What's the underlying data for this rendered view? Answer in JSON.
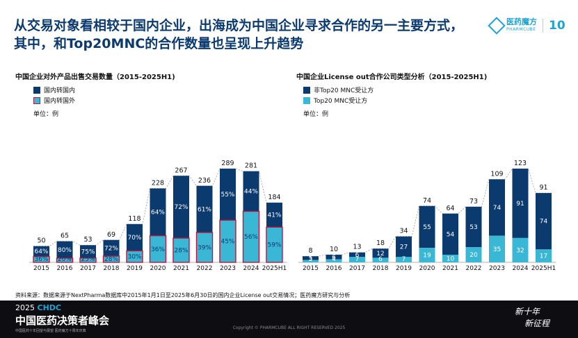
{
  "slide": {
    "title": "从交易对象看相较于国内企业，出海成为中国企业寻求合作的另一主要方式，其中，和Top20MNC的合作数量也呈现上升趋势",
    "logo": {
      "name": "医药魔方",
      "sub": "PHARMCUBE",
      "anniversary": "10"
    },
    "source": "资料来源：数据来源于NextPharma数据库中2015年1月1日至2025年6月30日的国内企业License out交易情况；医药魔方研究与分析",
    "footer": {
      "year": "2025",
      "brand": "CHDC",
      "conference": "中国医药决策者峰会",
      "subtitle": "中国医药十年回望与展望 医药魔方十周年庆典",
      "copyright": "Copyright © PHARMCUBE ALL RIGHT RESERVED 2025",
      "slogan_line1": "新十年",
      "slogan_line2": "新征程"
    },
    "colors": {
      "dark": "#0b3a6e",
      "light": "#3bb7d6",
      "highlight": "#c0143c",
      "text": "#111111"
    }
  },
  "chart_data": [
    {
      "type": "bar",
      "stacked": true,
      "title": "中国企业对外产品出售交易数量（2015-2025H1)",
      "unit_label": "单位：例",
      "categories": [
        "2015",
        "2016",
        "2017",
        "2018",
        "2019",
        "2020",
        "2021",
        "2022",
        "2023",
        "2024",
        "2025H1"
      ],
      "totals": [
        50,
        65,
        53,
        69,
        118,
        228,
        267,
        236,
        289,
        281,
        184
      ],
      "series": [
        {
          "name": "国内转国内",
          "percent_labels": [
            "64%",
            "80%",
            "75%",
            "72%",
            "70%",
            "64%",
            "72%",
            "61%",
            "55%",
            "44%",
            "41%"
          ]
        },
        {
          "name": "国内转国外",
          "percent_labels": [
            "36%",
            "20%",
            "25%",
            "28%",
            "30%",
            "36%",
            "28%",
            "39%",
            "45%",
            "56%",
            "59%"
          ]
        }
      ],
      "trend_line": "dotted line over totals"
    },
    {
      "type": "bar",
      "stacked": true,
      "title": "中国企业License out合作公司类型分析（2015-2025H1)",
      "categories": [
        "2015",
        "2016",
        "2017",
        "2018",
        "2019",
        "2020",
        "2021",
        "2022",
        "2023",
        "2024",
        "2025H1"
      ],
      "totals": [
        8,
        10,
        13,
        18,
        34,
        74,
        64,
        73,
        109,
        123,
        91
      ],
      "series": [
        {
          "name": "非Top20 MNC受让方",
          "values": [
            5,
            6,
            6,
            12,
            27,
            55,
            54,
            53,
            74,
            91,
            74
          ]
        },
        {
          "name": "Top20 MNC受让方",
          "values": [
            3,
            4,
            7,
            6,
            7,
            19,
            10,
            20,
            35,
            32,
            17
          ]
        }
      ],
      "trend_line": "dotted line over totals"
    }
  ]
}
